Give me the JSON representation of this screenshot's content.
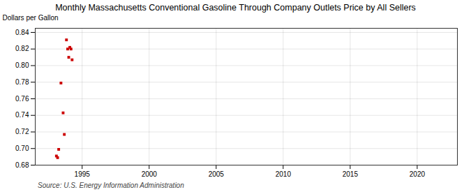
{
  "chart_data": {
    "type": "scatter",
    "title": "Monthly Massachusetts Conventional Gasoline Through Company Outlets Price by All Sellers",
    "ylabel": "Dollars per Gallon",
    "annotations": [
      "Source: U.S. Energy Information Administration"
    ],
    "x": [
      1993.08,
      1993.17,
      1993.25,
      1993.42,
      1993.58,
      1993.67,
      1993.83,
      1993.92,
      1994.0,
      1994.08,
      1994.17,
      1994.25
    ],
    "values": [
      0.691,
      0.689,
      0.699,
      0.779,
      0.743,
      0.717,
      0.831,
      0.82,
      0.81,
      0.822,
      0.82,
      0.807
    ],
    "color": "#cc0000",
    "marker": "square",
    "xlim": [
      1991.5,
      2023
    ],
    "xticks": [
      1995,
      2000,
      2005,
      2010,
      2015,
      2020
    ],
    "ylim": [
      0.68,
      0.845
    ],
    "yticks": [
      0.68,
      {
        "value": 0.7,
        "label": "0.70"
      },
      0.72,
      0.74,
      0.76,
      0.78,
      {
        "value": 0.8,
        "label": "0.80"
      },
      0.82,
      0.84
    ],
    "grid": true
  }
}
